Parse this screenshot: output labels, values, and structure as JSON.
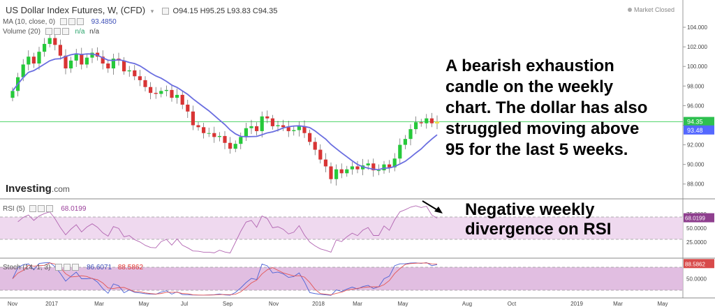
{
  "header": {
    "title": "US Dollar Index Futures, W, (CFD)",
    "ohlc": "O94.15  H95.25  L93.83  C94.35",
    "market_status": "Market Closed",
    "ma_label": "MA (10, close, 0)",
    "ma_value": "93.4850",
    "volume_label": "Volume (20)",
    "volume_values": [
      "n/a",
      "n/a"
    ]
  },
  "logo": {
    "name": "Investing",
    "suffix": ".com"
  },
  "annotations": {
    "main_lines": [
      "A bearish exhaustion",
      "candle on the weekly",
      "chart. The dollar has also",
      "struggled moving above",
      "95 for the last 5 weeks."
    ],
    "rsi_lines": [
      "Negative weekly",
      "divergence on RSI"
    ]
  },
  "rsi_panel": {
    "label": "RSI (5)",
    "value": "68.0199",
    "ticks": [
      "75.0000",
      "50.0000",
      "25.0000"
    ]
  },
  "stoch_panel": {
    "label": "Stoch (14, 1, 3)",
    "k_value": "86.6071",
    "d_value": "88.5862",
    "ticks": [
      "50.0000"
    ]
  },
  "colors": {
    "up": "#26c93a",
    "down": "#d83434",
    "ma": "#6a6ee0",
    "rsi": "#b266b2",
    "stoch_k": "#4d63d6",
    "stoch_d": "#e25555",
    "band": "#ecd2ec",
    "last_candle": "#f3e84a"
  },
  "chart_data": [
    {
      "type": "candlestick",
      "title": "US Dollar Index Futures, W, (CFD)",
      "x_ticks": [
        "Nov",
        "2017",
        "Mar",
        "May",
        "Jul",
        "Sep",
        "Nov",
        "2018",
        "Mar",
        "May",
        "Aug",
        "Oct",
        "2019",
        "Mar",
        "May"
      ],
      "y_ticks": [
        88,
        90,
        92,
        94,
        96,
        98,
        100,
        102,
        104
      ],
      "y_tick_labels": [
        "88.000",
        "90.000",
        "92.000",
        "94.000",
        "96.000",
        "98.000",
        "100.000",
        "102.000",
        "104.000"
      ],
      "ylim": [
        86.7,
        105.5
      ],
      "last_price_label": "94.35",
      "ma_price_label": "93.48",
      "series": [
        {
          "name": "price",
          "close": [
            97.5,
            98.9,
            100.2,
            101.0,
            100.3,
            101.5,
            102.3,
            102.9,
            102.2,
            101.1,
            99.8,
            100.6,
            101.3,
            100.2,
            100.9,
            101.4,
            101.0,
            100.3,
            99.8,
            100.8,
            100.6,
            99.5,
            99.6,
            99.0,
            98.6,
            97.9,
            97.3,
            97.2,
            97.5,
            97.6,
            96.8,
            97.1,
            96.1,
            95.4,
            94.0,
            93.8,
            93.2,
            93.2,
            92.8,
            92.9,
            92.2,
            91.6,
            92.1,
            92.8,
            93.7,
            93.9,
            93.4,
            94.9,
            94.7,
            93.9,
            94.0,
            93.8,
            93.4,
            93.5,
            93.9,
            93.2,
            92.3,
            91.5,
            90.5,
            89.8,
            88.5,
            89.5,
            89.1,
            89.5,
            89.8,
            89.5,
            89.9,
            90.1,
            89.4,
            89.4,
            90.0,
            89.7,
            90.6,
            92.0,
            92.6,
            93.6,
            94.3,
            94.2,
            94.7,
            94.2,
            94.35
          ]
        },
        {
          "name": "MA (10, close, 0)",
          "last": 93.48
        }
      ]
    },
    {
      "type": "line",
      "title": "RSI (5)",
      "ylim": [
        0,
        100
      ],
      "y_ticks": [
        25,
        50,
        75
      ],
      "last_value": 68.0199
    },
    {
      "type": "line",
      "title": "Stoch (14, 1, 3)",
      "ylim": [
        0,
        100
      ],
      "y_ticks": [
        50
      ],
      "series": [
        {
          "name": "%K",
          "last": 86.6071
        },
        {
          "name": "%D",
          "last": 88.5862
        }
      ]
    }
  ]
}
